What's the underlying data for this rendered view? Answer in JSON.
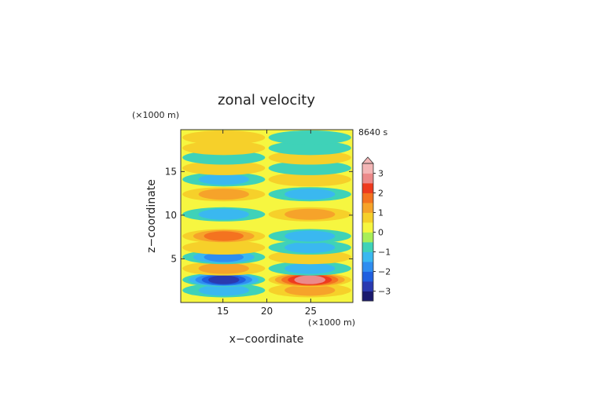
{
  "chart_data": {
    "type": "heatmap",
    "title": "zonal velocity",
    "xlabel": "x−coordinate",
    "ylabel": "z−coordinate",
    "x_unit": "(×1000 m)",
    "y_unit": "(×1000 m)",
    "time_label": "8640 s",
    "xlim": [
      10.2,
      29.8
    ],
    "ylim": [
      0,
      19.8
    ],
    "x_ticks": [
      15,
      20,
      25
    ],
    "x_tick_labels": [
      "15",
      "20",
      "25"
    ],
    "y_ticks": [
      5,
      10,
      15
    ],
    "y_tick_labels": [
      "5",
      "10",
      "15"
    ],
    "colorbar": {
      "levels": [
        -3.5,
        -3.0,
        -2.5,
        -2.0,
        -1.5,
        -1.0,
        -0.5,
        0.0,
        0.5,
        1.0,
        1.5,
        2.0,
        2.5,
        3.0,
        3.5
      ],
      "colors": [
        "#1a1a6e",
        "#2a3ab0",
        "#1f5fe0",
        "#2f8df0",
        "#3ab8f0",
        "#3fd2b8",
        "#a8ee58",
        "#f6f640",
        "#f6d02a",
        "#f6a32a",
        "#f47320",
        "#ee3a1e",
        "#ec8a8a",
        "#f4b6b6"
      ],
      "tick_values": [
        -3,
        -2,
        -1,
        0,
        1,
        2,
        3
      ],
      "tick_labels": [
        "−3",
        "−2",
        "−1",
        "0",
        "1",
        "2",
        "3"
      ],
      "extend": "max"
    },
    "field_bands": [
      {
        "z": 1.4,
        "left": -1.2,
        "right": 1.4
      },
      {
        "z": 2.6,
        "left": -2.6,
        "right": 2.8
      },
      {
        "z": 3.9,
        "left": 1.4,
        "right": -1.3
      },
      {
        "z": 5.2,
        "left": -1.8,
        "right": 0.9
      },
      {
        "z": 6.3,
        "left": 0.9,
        "right": -1.3
      },
      {
        "z": 7.6,
        "left": 1.6,
        "right": -1.4
      },
      {
        "z": 10.1,
        "left": -1.4,
        "right": 1.2
      },
      {
        "z": 12.4,
        "left": 1.3,
        "right": -1.3
      },
      {
        "z": 14.1,
        "left": -1.0,
        "right": 0.8
      },
      {
        "z": 15.4,
        "left": 0.8,
        "right": -0.9
      },
      {
        "z": 16.6,
        "left": -0.8,
        "right": 0.8
      },
      {
        "z": 17.7,
        "left": 0.8,
        "right": -0.9
      },
      {
        "z": 18.9,
        "left": 0.8,
        "right": -0.9
      }
    ]
  }
}
